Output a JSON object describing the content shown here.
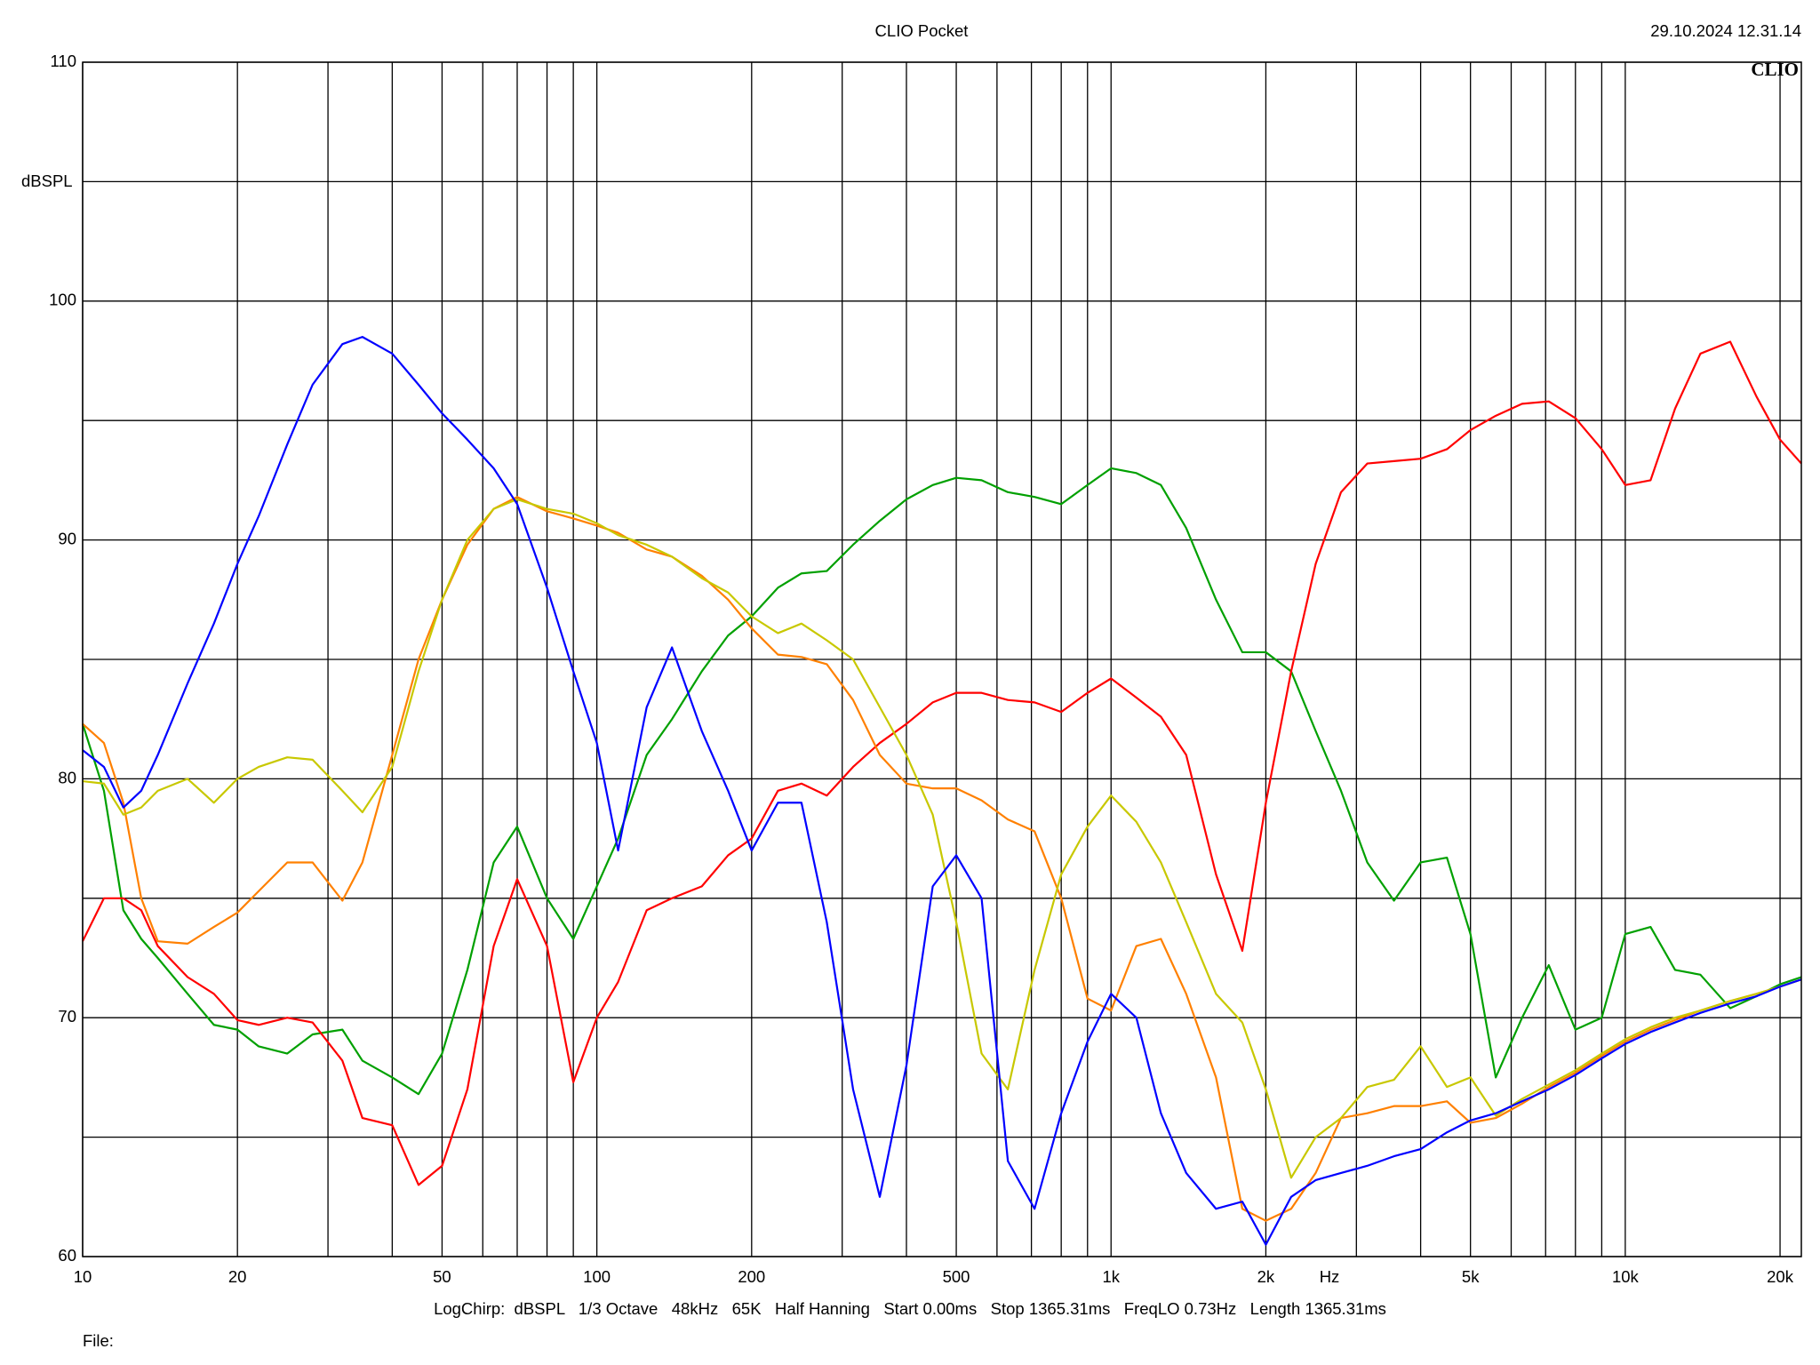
{
  "chart_data": {
    "type": "line",
    "title": "CLIO Pocket",
    "timestamp": "29.10.2024 12.31.14",
    "logo": "CLIO",
    "y_label": "dBSPL",
    "x_label": "Hz",
    "footer": "LogChirp:  dBSPL   1/3 Octave   48kHz   65K   Half Hanning   Start 0.00ms   Stop 1365.31ms   FreqLO 0.73Hz   Length 1365.31ms",
    "file_label": "File:",
    "x_log": true,
    "grid": true,
    "xlim": [
      10,
      22000
    ],
    "ylim": [
      60,
      110
    ],
    "xticks": [
      10,
      20,
      50,
      100,
      200,
      500,
      {
        "value": 1000,
        "label": "1k"
      },
      {
        "value": 2000,
        "label": "2k"
      },
      {
        "value": 5000,
        "label": "5k"
      },
      {
        "value": 10000,
        "label": "10k"
      },
      {
        "value": 20000,
        "label": "20k"
      }
    ],
    "xminor": [
      30,
      40,
      60,
      70,
      80,
      90,
      300,
      400,
      600,
      700,
      800,
      900,
      3000,
      4000,
      6000,
      7000,
      8000,
      9000
    ],
    "yticks": [
      60,
      70,
      80,
      90,
      100,
      110
    ],
    "yminor": [
      65,
      75,
      85,
      95,
      105
    ],
    "x": [
      10,
      11,
      12,
      13,
      14,
      16,
      18,
      20,
      22,
      25,
      28,
      32,
      35,
      40,
      45,
      50,
      56,
      63,
      70,
      80,
      90,
      100,
      110,
      125,
      140,
      160,
      180,
      200,
      225,
      250,
      280,
      315,
      355,
      400,
      450,
      500,
      560,
      630,
      710,
      800,
      900,
      1000,
      1120,
      1250,
      1400,
      1600,
      1800,
      2000,
      2240,
      2500,
      2800,
      3150,
      3550,
      4000,
      4500,
      5000,
      5600,
      6300,
      7100,
      8000,
      9000,
      10000,
      11200,
      12500,
      14000,
      16000,
      18000,
      20000,
      22000
    ],
    "series": [
      {
        "color": "#00a000",
        "values": [
          82.3,
          79.5,
          74.5,
          73.3,
          72.5,
          71,
          69.7,
          69.5,
          68.8,
          68.5,
          69.3,
          69.5,
          68.2,
          67.5,
          66.8,
          68.5,
          72,
          76.5,
          78,
          75,
          73.3,
          75.5,
          77.5,
          81,
          82.5,
          84.5,
          86,
          86.8,
          88,
          88.6,
          88.7,
          89.8,
          90.8,
          91.7,
          92.3,
          92.6,
          92.5,
          92,
          91.8,
          91.5,
          92.3,
          93,
          92.8,
          92.3,
          90.5,
          87.5,
          85.3,
          85.3,
          84.5,
          82,
          79.5,
          76.5,
          74.9,
          76.5,
          76.7,
          73.5,
          67.5,
          70,
          72.2,
          69.5,
          70,
          73.5,
          73.8,
          72,
          71.8,
          70.4,
          70.9,
          71.4,
          71.7
        ]
      },
      {
        "color": "#ff0000",
        "values": [
          73.2,
          75,
          75,
          74.5,
          73,
          71.7,
          71,
          69.9,
          69.7,
          70,
          69.8,
          68.2,
          65.8,
          65.5,
          63,
          63.8,
          67,
          73,
          75.8,
          73,
          67.3,
          70,
          71.5,
          74.5,
          75,
          75.5,
          76.8,
          77.5,
          79.5,
          79.8,
          79.3,
          80.5,
          81.5,
          82.3,
          83.2,
          83.6,
          83.6,
          83.3,
          83.2,
          82.8,
          83.6,
          84.2,
          83.4,
          82.6,
          81,
          76,
          72.8,
          79,
          84.5,
          89,
          92,
          93.2,
          93.3,
          93.4,
          93.8,
          94.6,
          95.2,
          95.7,
          95.8,
          95.1,
          93.8,
          92.3,
          92.5,
          95.5,
          97.8,
          98.3,
          96,
          94.2,
          93.2
        ]
      },
      {
        "color": "#ff8000",
        "values": [
          82.3,
          81.5,
          79,
          75,
          73.2,
          73.1,
          73.8,
          74.4,
          75.3,
          76.5,
          76.5,
          74.9,
          76.5,
          81,
          85,
          87.5,
          89.8,
          91.3,
          91.8,
          91.2,
          90.9,
          90.6,
          90.3,
          89.6,
          89.3,
          88.5,
          87.5,
          86.3,
          85.2,
          85.1,
          84.8,
          83.3,
          81,
          79.8,
          79.6,
          79.6,
          79.1,
          78.3,
          77.8,
          75,
          70.8,
          70.3,
          73,
          73.3,
          71,
          67.5,
          62,
          61.5,
          62,
          63.5,
          65.8,
          66,
          66.3,
          66.3,
          66.5,
          65.6,
          65.8,
          66.4,
          67.1,
          67.7,
          68.4,
          69,
          69.5,
          69.9,
          70.3,
          70.7,
          71,
          71.3,
          71.6
        ]
      },
      {
        "color": "#c8c800",
        "values": [
          79.9,
          79.8,
          78.5,
          78.8,
          79.5,
          80,
          79,
          80,
          80.5,
          80.9,
          80.8,
          79.5,
          78.6,
          80.5,
          84.5,
          87.5,
          90,
          91.3,
          91.7,
          91.3,
          91.1,
          90.7,
          90.2,
          89.8,
          89.3,
          88.4,
          87.8,
          86.8,
          86.1,
          86.5,
          85.8,
          85,
          83,
          81,
          78.5,
          74,
          68.5,
          67,
          72,
          76,
          78,
          79.3,
          78.2,
          76.5,
          74,
          71,
          69.8,
          67,
          63.3,
          65,
          65.8,
          67.1,
          67.4,
          68.8,
          67.1,
          67.5,
          65.9,
          66.6,
          67.2,
          67.8,
          68.5,
          69.1,
          69.6,
          70,
          70.3,
          70.7,
          71,
          71.3,
          71.6
        ]
      },
      {
        "color": "#0000ff",
        "values": [
          81.2,
          80.5,
          78.8,
          79.5,
          81,
          84,
          86.5,
          89,
          91,
          94,
          96.5,
          98.2,
          98.5,
          97.8,
          96.5,
          95.3,
          94.2,
          93,
          91.5,
          88,
          84.5,
          81.5,
          77,
          83,
          85.5,
          82,
          79.5,
          77,
          79,
          79,
          74,
          67,
          62.5,
          68,
          75.5,
          76.8,
          75,
          64,
          62,
          66,
          69,
          71,
          70,
          66,
          63.5,
          62,
          62.3,
          60.5,
          62.5,
          63.2,
          63.5,
          63.8,
          64.2,
          64.5,
          65.2,
          65.7,
          66,
          66.5,
          67,
          67.6,
          68.3,
          68.9,
          69.4,
          69.8,
          70.2,
          70.6,
          70.9,
          71.3,
          71.6
        ]
      }
    ]
  }
}
